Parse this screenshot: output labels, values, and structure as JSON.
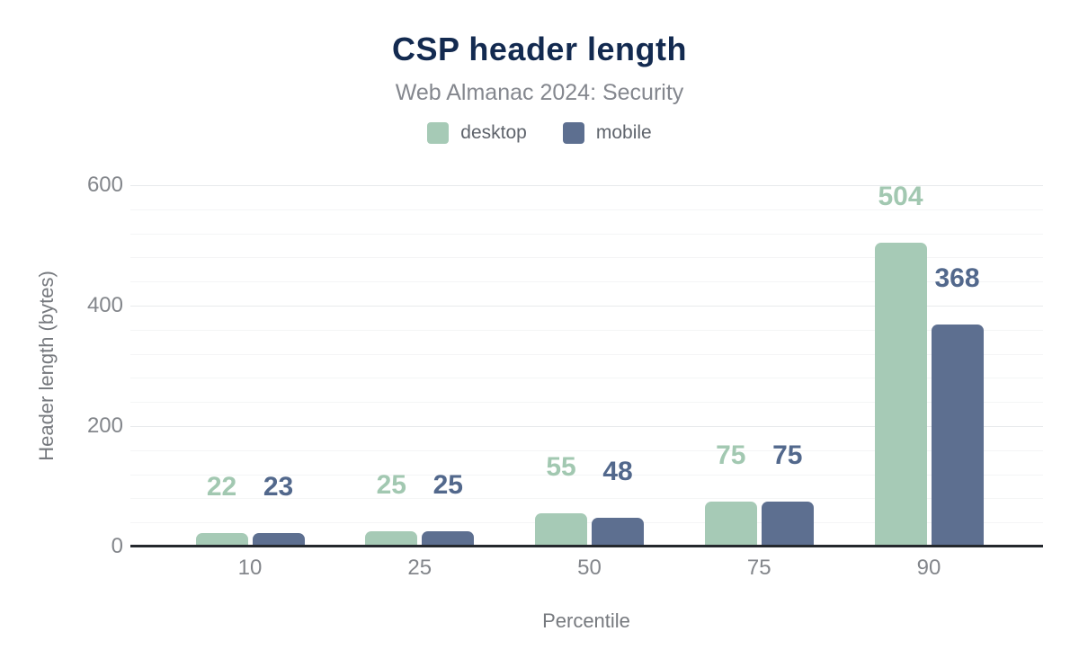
{
  "header": {
    "title": "CSP header length",
    "subtitle": "Web Almanac 2024: Security"
  },
  "legend": [
    {
      "label": "desktop",
      "color": "#a6cab6"
    },
    {
      "label": "mobile",
      "color": "#5d6f90"
    }
  ],
  "chart_data": {
    "type": "bar",
    "title": "CSP header length",
    "subtitle": "Web Almanac 2024: Security",
    "categories": [
      "10",
      "25",
      "50",
      "75",
      "90"
    ],
    "series": [
      {
        "name": "desktop",
        "color": "#a6cab6",
        "label_color": "#a2c8b1",
        "values": [
          22,
          25,
          55,
          75,
          504
        ]
      },
      {
        "name": "mobile",
        "color": "#5d6f90",
        "label_color": "#52688c",
        "values": [
          23,
          25,
          48,
          75,
          368
        ]
      }
    ],
    "xlabel": "Percentile",
    "ylabel": "Header length (bytes)",
    "ylim": [
      0,
      600
    ],
    "yticks": [
      0,
      200,
      400,
      600
    ],
    "minor_grid_step": 40,
    "grid": true,
    "legend_position": "top"
  }
}
